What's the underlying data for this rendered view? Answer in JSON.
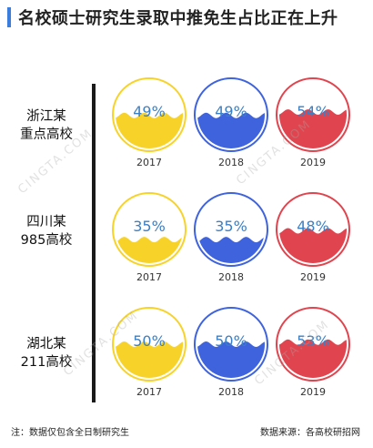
{
  "title": "名校硕士研究生录取中推免生占比正在上升",
  "footer": {
    "note": "注：数据仅包含全日制研究生",
    "source": "数据来源：各高校研招网"
  },
  "watermark": "CINGTA.COM",
  "colors": {
    "2017": "#f7d32a",
    "2018": "#3e63dd",
    "2019": "#e0454f",
    "pct_text": "#3b7fc4"
  },
  "rows": [
    {
      "label_line1": "浙江某",
      "label_line2": "重点高校"
    },
    {
      "label_line1": "四川某",
      "label_line2": "985高校"
    },
    {
      "label_line1": "湖北某",
      "label_line2": "211高校"
    }
  ],
  "chart_data": {
    "type": "bar",
    "title": "名校硕士研究生录取中推免生占比正在上升",
    "categories": [
      "2017",
      "2018",
      "2019"
    ],
    "series": [
      {
        "name": "浙江某重点高校",
        "values": [
          49,
          49,
          54
        ],
        "labels": [
          "49%",
          "49%",
          "54%"
        ]
      },
      {
        "name": "四川某985高校",
        "values": [
          35,
          35,
          48
        ],
        "labels": [
          "35%",
          "35%",
          "48%"
        ]
      },
      {
        "name": "湖北某211高校",
        "values": [
          50,
          50,
          53
        ],
        "labels": [
          "50%",
          "50%",
          "53%"
        ]
      }
    ],
    "ylim": [
      0,
      100
    ],
    "grid": false
  }
}
